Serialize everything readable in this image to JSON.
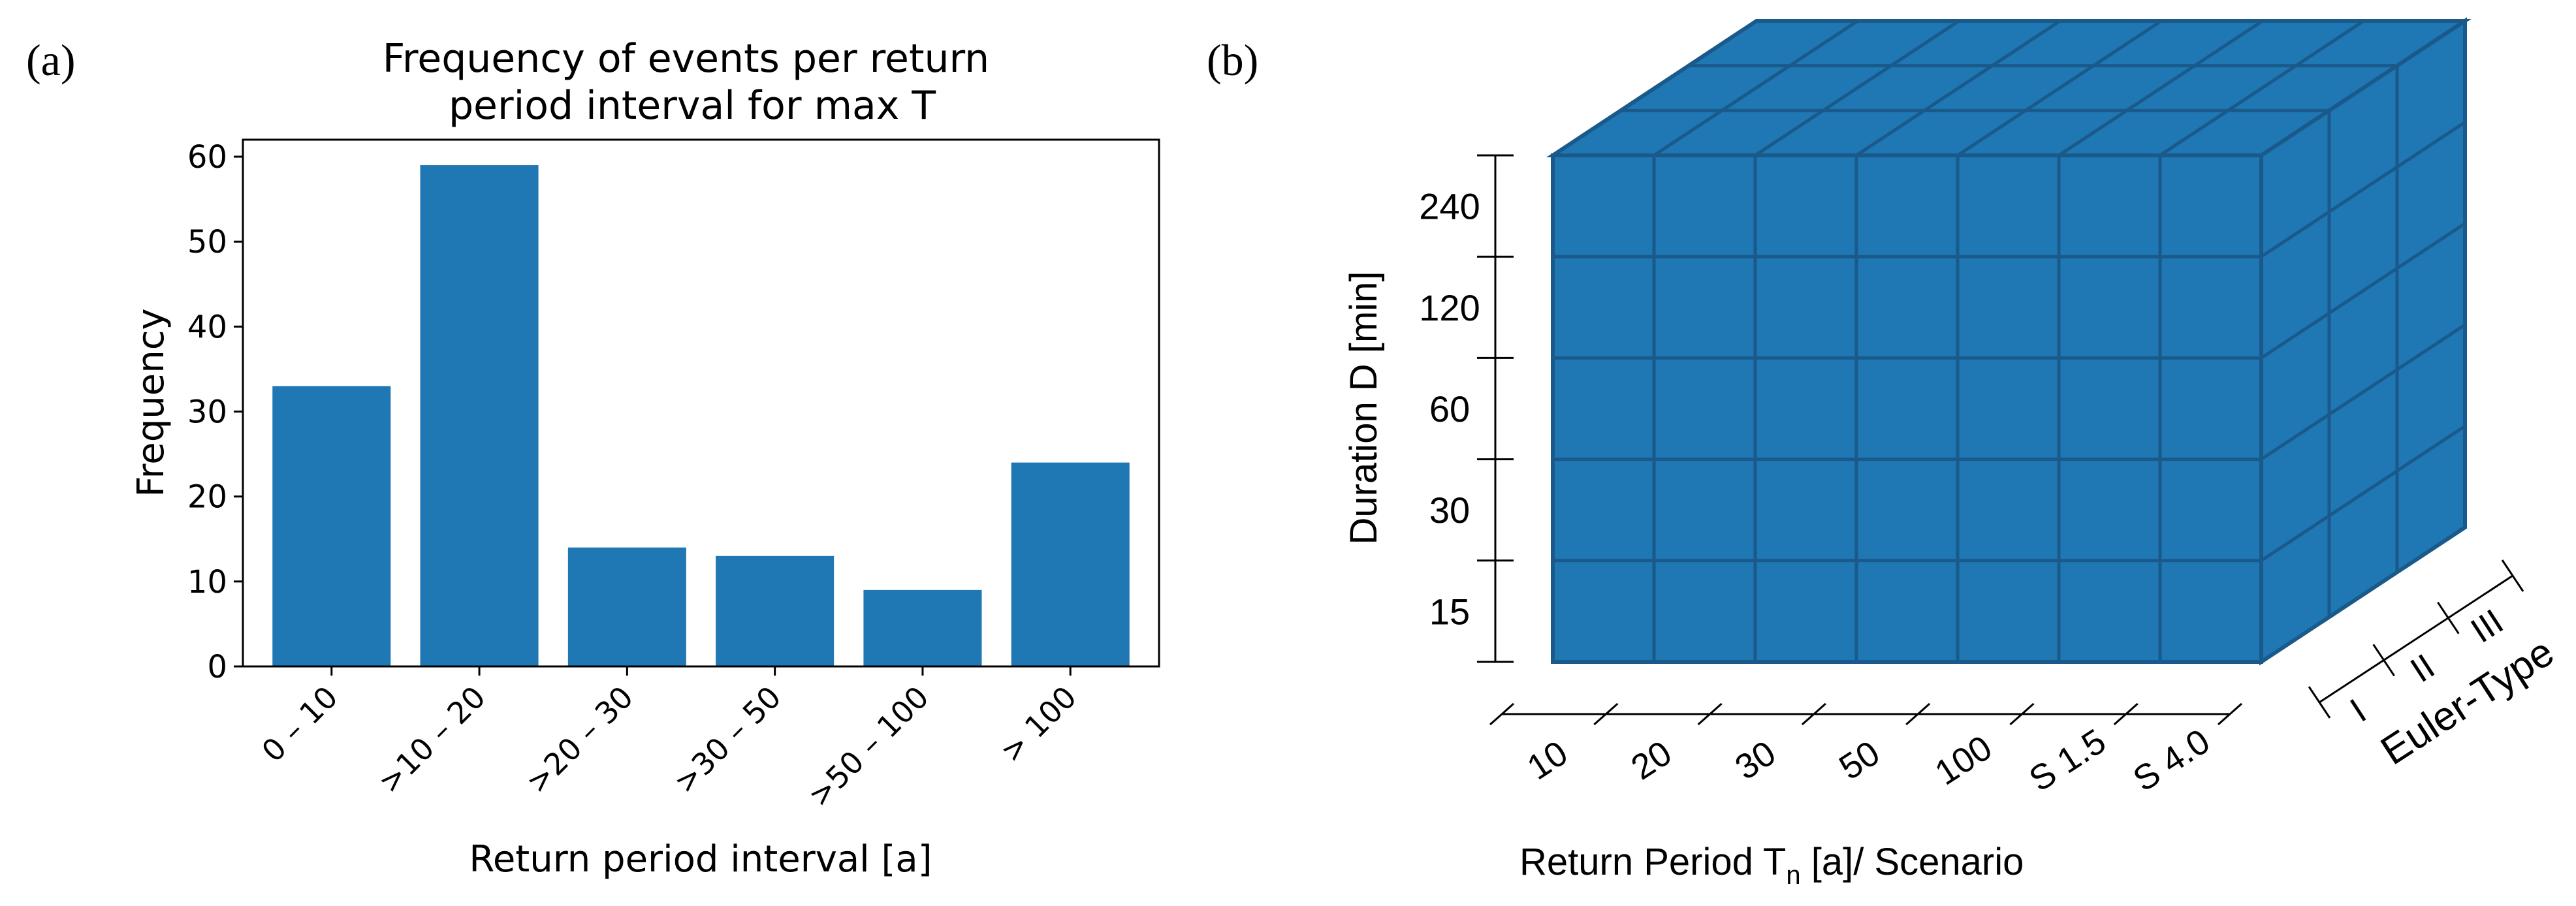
{
  "panel_labels": {
    "a": "(a)",
    "b": "(b)"
  },
  "chart_data": [
    {
      "type": "bar",
      "title": "Frequency of events per return\nperiod interval for max T",
      "xlabel": "Return period interval [a]",
      "ylabel": "Frequency",
      "categories": [
        "0 – 10",
        ">10 – 20",
        ">20 – 30",
        ">30 – 50",
        ">50 – 100",
        "> 100"
      ],
      "values": [
        33,
        59,
        14,
        13,
        9,
        24
      ],
      "ylim": [
        0,
        62
      ],
      "yticks": [
        0,
        10,
        20,
        30,
        40,
        50,
        60
      ],
      "color": "#1f77b4",
      "grid": false
    },
    {
      "type": "diagram",
      "style": "3d-cube",
      "color": "#1f77b4",
      "edge_color": "#1a5a8a",
      "y_axis": {
        "label": "Duration D [min]",
        "ticks": [
          "240",
          "120",
          "60",
          "30",
          "15"
        ]
      },
      "x_axis": {
        "label": "Return Period T",
        "label_subscript": "n",
        "label_suffix": " [a]/ Scenario",
        "ticks": [
          "10",
          "20",
          "30",
          "50",
          "100",
          "S 1.5",
          "S 4.0"
        ]
      },
      "z_axis": {
        "label": "Euler-Type",
        "ticks": [
          "I",
          "II",
          "III"
        ]
      }
    }
  ]
}
